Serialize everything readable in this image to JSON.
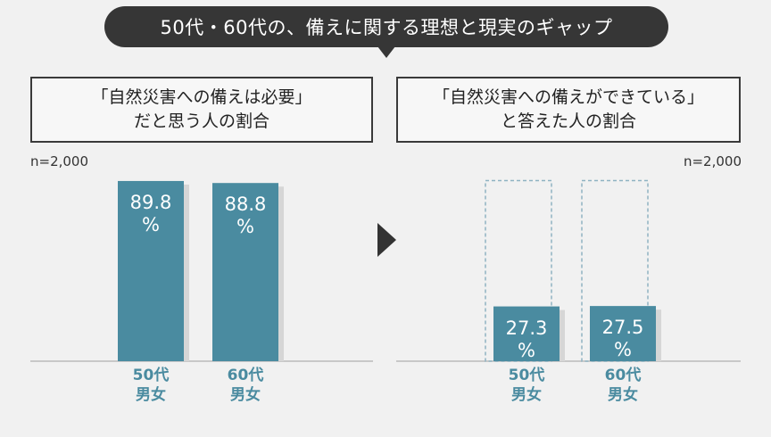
{
  "title": "50代・60代の、備えに関する理想と現実のギャップ",
  "chart_data": [
    {
      "type": "bar",
      "title_lines": [
        "「自然災害への備えは必要」",
        "だと思う人の割合"
      ],
      "n_label": "n=2,000",
      "categories": [
        [
          "50代",
          "男女"
        ],
        [
          "60代",
          "男女"
        ]
      ],
      "values": [
        89.8,
        88.8
      ],
      "unit": "%",
      "ylim": [
        0,
        100
      ],
      "bar_color": "#4a8ba0"
    },
    {
      "type": "bar",
      "title_lines": [
        "「自然災害への備えができている」",
        "と答えた人の割合"
      ],
      "n_label": "n=2,000",
      "categories": [
        [
          "50代",
          "男女"
        ],
        [
          "60代",
          "男女"
        ]
      ],
      "values": [
        27.3,
        27.5
      ],
      "unit": "%",
      "ylim": [
        0,
        100
      ],
      "bar_color": "#4a8ba0",
      "reference_outline": "dashed"
    }
  ],
  "colors": {
    "bar": "#4a8ba0",
    "title_bg": "#363636",
    "dashed_outline": "#8fb3c2"
  }
}
